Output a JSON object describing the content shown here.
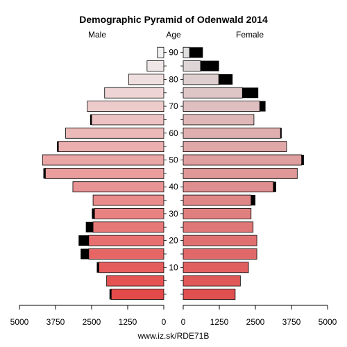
{
  "chart_data": {
    "type": "bar",
    "subtype": "population-pyramid",
    "title": "Demographic Pyramid of Odenwald 2014",
    "left_label": "Male",
    "center_label": "Age",
    "right_label": "Female",
    "footer": "www.iz.sk/RDE71B",
    "age_ticks": [
      "10",
      "20",
      "30",
      "40",
      "50",
      "60",
      "70",
      "80",
      "90"
    ],
    "x_ticks_left": [
      "5000",
      "3750",
      "2500",
      "1250",
      "0"
    ],
    "x_ticks_right": [
      "0",
      "1250",
      "2500",
      "3750",
      "5000"
    ],
    "xlim": [
      0,
      5000
    ],
    "age_groups": [
      "0-4",
      "5-9",
      "10-14",
      "15-19",
      "20-24",
      "25-29",
      "30-34",
      "35-39",
      "40-44",
      "45-49",
      "50-54",
      "55-59",
      "60-64",
      "65-69",
      "70-74",
      "75-79",
      "80-84",
      "85-89",
      "90+"
    ],
    "series": [
      {
        "name": "Male",
        "values": [
          1820,
          1980,
          2250,
          2600,
          2600,
          2450,
          2400,
          2450,
          3150,
          4100,
          4200,
          3650,
          3400,
          2500,
          2650,
          2050,
          1220,
          580,
          220
        ],
        "excess": [
          60,
          0,
          70,
          280,
          350,
          250,
          90,
          0,
          0,
          70,
          0,
          50,
          0,
          50,
          0,
          0,
          0,
          0,
          0
        ]
      },
      {
        "name": "Female",
        "values": [
          1800,
          1980,
          2260,
          2550,
          2550,
          2420,
          2350,
          2350,
          3120,
          3950,
          4100,
          3580,
          3370,
          2450,
          2650,
          2050,
          1230,
          600,
          220
        ],
        "excess": [
          0,
          0,
          0,
          0,
          0,
          0,
          0,
          150,
          100,
          0,
          80,
          0,
          40,
          0,
          200,
          550,
          480,
          640,
          460
        ]
      }
    ]
  }
}
